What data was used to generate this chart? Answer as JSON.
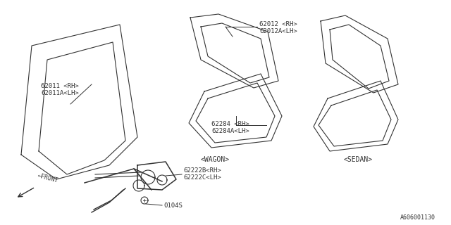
{
  "bg_color": "#ffffff",
  "line_color": "#333333",
  "text_color": "#333333",
  "fig_width": 6.4,
  "fig_height": 3.2,
  "dpi": 100,
  "diagram_id": "A606001130",
  "labels": {
    "part_62011": "62011 <RH>\n62011A<LH>",
    "part_62012": "62012 <RH>\n62012A<LH>",
    "part_62284": "62284 <RH>\n62284A<LH>",
    "part_62222": "62222B<RH>\n62222C<LH>",
    "part_0104s": "0104S",
    "wagon_label": "<WAGON>",
    "sedan_label": "<SEDAN>",
    "front_label": "←FRONT"
  }
}
